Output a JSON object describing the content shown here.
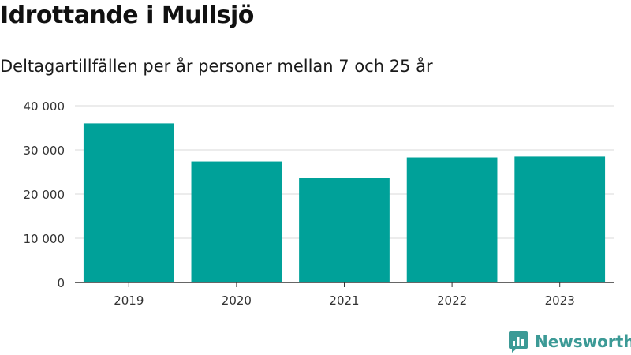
{
  "header": {
    "title": "Idrottande i Mullsjö",
    "subtitle": "Deltagartillfällen per år personer mellan 7 och 25 år"
  },
  "brand": {
    "name": "Newsworthy",
    "color": "#3c9a96"
  },
  "chart_data": {
    "type": "bar",
    "title": "",
    "xlabel": "",
    "ylabel": "",
    "categories": [
      "2019",
      "2020",
      "2021",
      "2022",
      "2023"
    ],
    "values": [
      36000,
      27400,
      23600,
      28300,
      28500
    ],
    "ylim": [
      0,
      40000
    ],
    "yticks": [
      0,
      10000,
      20000,
      30000,
      40000
    ],
    "ytick_labels": [
      "0",
      "10 000",
      "20 000",
      "30 000",
      "40 000"
    ],
    "grid": true,
    "bar_color": "#00a199",
    "legend": "none"
  }
}
